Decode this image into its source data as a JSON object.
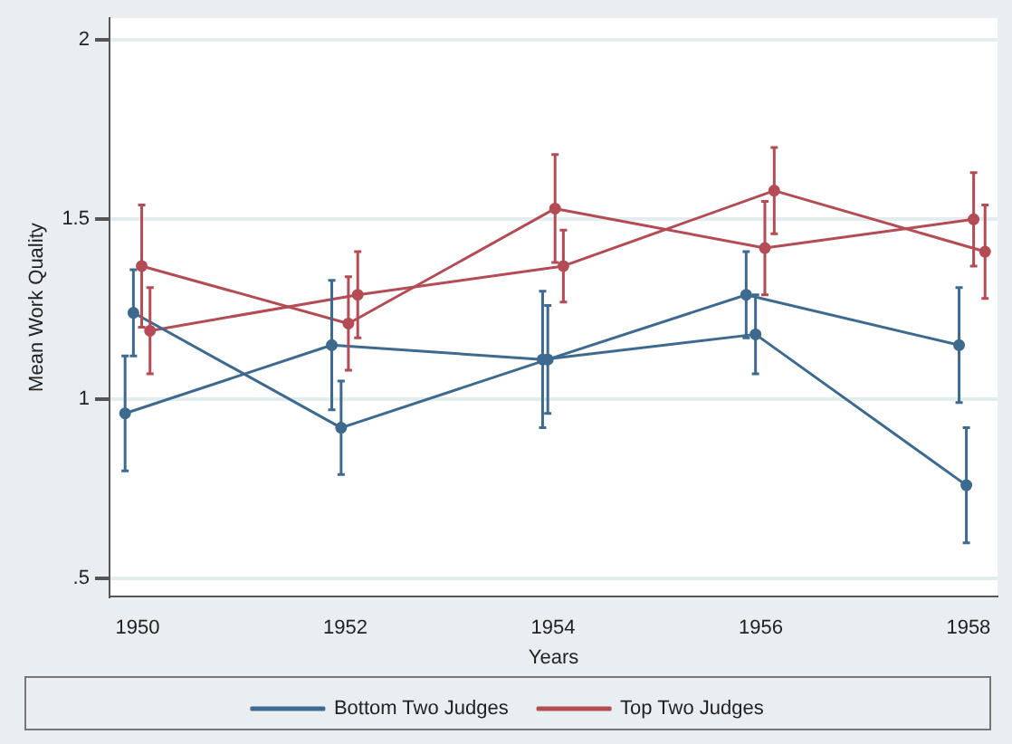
{
  "chart_data": {
    "type": "line",
    "xlabel": "Years",
    "ylabel": "Mean Work Quality",
    "xlim": [
      1949.73,
      1958.28
    ],
    "xticks": [
      1950,
      1952,
      1954,
      1956,
      1958
    ],
    "ylim": [
      0.45,
      2.06
    ],
    "yticks": [
      {
        "value": 0.5,
        "label": ".5"
      },
      1,
      {
        "value": 1.5,
        "label": "1.5"
      },
      2
    ],
    "grid": "y",
    "legend": "bottom",
    "marker": "circle",
    "line_style": "solid",
    "series": [
      {
        "name": "Bottom Two Judges",
        "color": "#3d6a8e",
        "x": [
          1949.96,
          1951.96,
          1953.95,
          1955.86,
          1957.91
        ],
        "values": [
          1.24,
          0.92,
          1.11,
          1.29,
          1.15
        ],
        "errors": [
          0.12,
          0.13,
          0.15,
          0.12,
          0.16
        ]
      },
      {
        "color": "#3d6a8e",
        "x": [
          1949.88,
          1951.87,
          1953.9,
          1955.95,
          1957.98
        ],
        "values": [
          0.96,
          1.15,
          1.11,
          1.18,
          0.76
        ],
        "errors": [
          0.16,
          0.18,
          0.19,
          0.11,
          0.16
        ]
      },
      {
        "name": "Top Two Judges",
        "color": "#b44c55",
        "x": [
          1950.04,
          1952.03,
          1954.02,
          1956.04,
          1958.05
        ],
        "values": [
          1.37,
          1.21,
          1.53,
          1.42,
          1.5
        ],
        "errors": [
          0.17,
          0.13,
          0.15,
          0.13,
          0.13
        ]
      },
      {
        "color": "#b44c55",
        "x": [
          1950.12,
          1952.12,
          1954.1,
          1956.13,
          1958.16
        ],
        "values": [
          1.19,
          1.29,
          1.37,
          1.58,
          1.41
        ],
        "errors": [
          0.12,
          0.12,
          0.1,
          0.12,
          0.13
        ]
      }
    ]
  }
}
